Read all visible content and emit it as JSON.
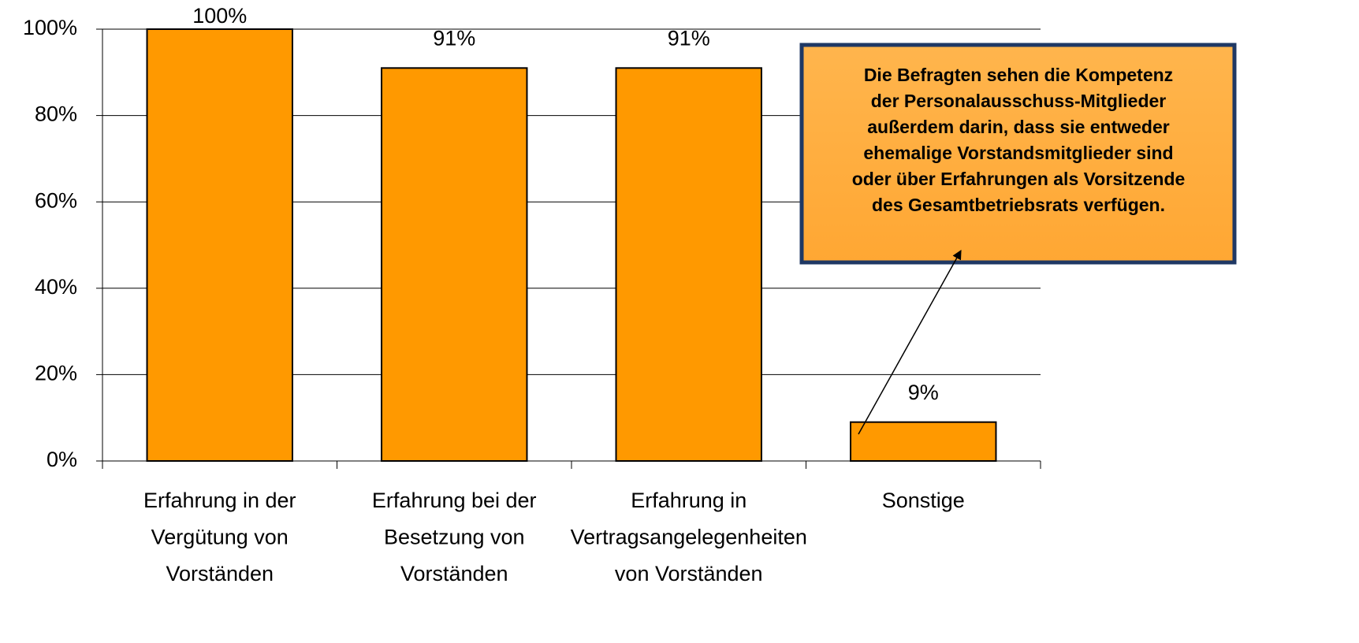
{
  "chart_data": {
    "type": "bar",
    "categories": [
      [
        "Erfahrung in der",
        "Vergütung von",
        "Vorständen"
      ],
      [
        "Erfahrung bei der",
        "Besetzung von",
        "Vorständen"
      ],
      [
        "Erfahrung in",
        "Vertragsangelegenheiten",
        "von Vorständen"
      ],
      [
        "Sonstige"
      ]
    ],
    "values": [
      100,
      91,
      91,
      9
    ],
    "value_labels": [
      "100%",
      "91%",
      "91%",
      "9%"
    ],
    "color": "#ff9900",
    "ylim": [
      0,
      100
    ],
    "yticks": [
      {
        "value": 0,
        "label": "0%"
      },
      {
        "value": 20,
        "label": "20%"
      },
      {
        "value": 40,
        "label": "40%"
      },
      {
        "value": 60,
        "label": "60%"
      },
      {
        "value": 80,
        "label": "80%"
      },
      {
        "value": 100,
        "label": "100%"
      }
    ],
    "grid": true,
    "annotation": [
      "Die Befragten sehen die Kompetenz",
      "der Personalausschuss-Mitglieder",
      "außerdem darin, dass sie entweder",
      "ehemalige Vorstandsmitglieder sind",
      "oder über Erfahrungen als Vorsitzende",
      "des Gesamtbetriebsrats verfügen."
    ]
  }
}
